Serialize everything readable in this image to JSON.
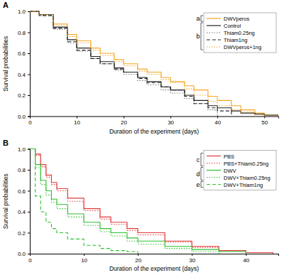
{
  "chart_data": [
    {
      "type": "line",
      "title": "A",
      "x_label": "Duration of the experiment (days)",
      "y_label": "Survival probabilities",
      "x": [
        0,
        2,
        5,
        8,
        10,
        13,
        15,
        18,
        20,
        23,
        25,
        28,
        30,
        33,
        35,
        38,
        40,
        43,
        45,
        48,
        50,
        53
      ],
      "xlim": [
        0,
        53
      ],
      "xticks": [
        0,
        10,
        20,
        30,
        40,
        50
      ],
      "ylim": [
        0,
        1
      ],
      "yticks": [
        {
          "value": 0,
          "label": "0.0"
        },
        0.2,
        0.4,
        0.6,
        0.8,
        {
          "value": 1,
          "label": "1.0"
        }
      ],
      "legend": "top-right",
      "series": [
        {
          "name": "DWVperos",
          "color": "#f5a623",
          "line_style": "solid",
          "values": [
            1,
            0.97,
            0.88,
            0.78,
            0.72,
            0.65,
            0.6,
            0.54,
            0.5,
            0.45,
            0.42,
            0.37,
            0.33,
            0.29,
            0.25,
            0.19,
            0.15,
            0.1,
            0.06,
            0.03,
            0.01,
            0
          ]
        },
        {
          "name": "Control",
          "color": "#222222",
          "line_style": "solid",
          "values": [
            1,
            0.97,
            0.85,
            0.73,
            0.65,
            0.57,
            0.52,
            0.46,
            0.42,
            0.37,
            0.33,
            0.28,
            0.25,
            0.2,
            0.15,
            0.1,
            0.08,
            0.05,
            0.03,
            0.02,
            0.01,
            0
          ]
        },
        {
          "name": "Thiam0.25ng",
          "color": "#777777",
          "line_style": "dotted",
          "values": [
            1,
            0.96,
            0.83,
            0.7,
            0.62,
            0.55,
            0.5,
            0.44,
            0.4,
            0.34,
            0.3,
            0.25,
            0.22,
            0.17,
            0.12,
            0.06,
            0,
            null,
            null,
            null,
            null,
            null
          ]
        },
        {
          "name": "Thiam1ng",
          "color": "#222222",
          "line_style": "dashed",
          "values": [
            1,
            0.96,
            0.84,
            0.71,
            0.63,
            0.55,
            0.5,
            0.45,
            0.42,
            0.36,
            0.32,
            0.28,
            0.25,
            0.19,
            0.12,
            0.08,
            0.05,
            0,
            null,
            null,
            null,
            null
          ]
        },
        {
          "name": "DWVperos+1ng",
          "color": "#f5a623",
          "line_style": "dotted",
          "values": [
            1,
            0.97,
            0.87,
            0.76,
            0.7,
            0.63,
            0.58,
            0.52,
            0.48,
            0.43,
            0.4,
            0.35,
            0.32,
            0.26,
            0.2,
            0.14,
            0.1,
            0.06,
            0.04,
            0.01,
            0,
            null
          ]
        }
      ],
      "annotations": [
        {
          "text": "a",
          "series": [
            "DWVperos"
          ]
        },
        {
          "text": "b",
          "series": [
            "Control",
            "Thiam0.25ng",
            "Thiam1ng",
            "DWVperos+1ng"
          ]
        }
      ]
    },
    {
      "type": "line",
      "title": "B",
      "x_label": "Duration of the experiment (days)",
      "y_label": "Survival probabilities",
      "x": [
        0,
        1,
        2,
        3,
        4,
        5,
        7,
        10,
        13,
        15,
        18,
        20,
        25,
        30,
        35,
        40,
        45
      ],
      "xlim": [
        0,
        46
      ],
      "xticks": [
        0,
        10,
        20,
        30,
        40
      ],
      "ylim": [
        0,
        1
      ],
      "yticks": [
        {
          "value": 0,
          "label": "0.0"
        },
        0.2,
        0.4,
        0.6,
        0.8,
        {
          "value": 1,
          "label": "1.0"
        }
      ],
      "legend": "top-right",
      "series": [
        {
          "name": "PBS",
          "color": "#e03a3a",
          "line_style": "solid",
          "values": [
            1,
            0.95,
            0.85,
            0.75,
            0.68,
            0.62,
            0.53,
            0.43,
            0.35,
            0.3,
            0.24,
            0.2,
            0.12,
            0.07,
            0.03,
            0.01,
            0
          ]
        },
        {
          "name": "PBS+Thiam0.25ng",
          "color": "#e03a3a",
          "line_style": "dotted",
          "values": [
            1,
            0.94,
            0.83,
            0.73,
            0.66,
            0.6,
            0.5,
            0.41,
            0.33,
            0.28,
            0.22,
            0.18,
            0.11,
            0.06,
            0.03,
            0.01,
            0
          ]
        },
        {
          "name": "DWV",
          "color": "#2fbf2f",
          "line_style": "solid",
          "values": [
            1,
            0.85,
            0.7,
            0.6,
            0.52,
            0.47,
            0.38,
            0.3,
            0.24,
            0.2,
            0.15,
            0.12,
            0.07,
            0.04,
            0.02,
            0,
            null
          ]
        },
        {
          "name": "DWV+Thiam0.25ng",
          "color": "#2fbf2f",
          "line_style": "dotted",
          "values": [
            1,
            0.82,
            0.66,
            0.56,
            0.49,
            0.43,
            0.35,
            0.27,
            0.21,
            0.17,
            0.12,
            0.09,
            0.05,
            0.02,
            0,
            null,
            null
          ]
        },
        {
          "name": "DWV+Thiam1ng",
          "color": "#2fbf2f",
          "line_style": "dashed",
          "values": [
            1,
            0.55,
            0.4,
            0.3,
            0.24,
            0.2,
            0.14,
            0.08,
            0.05,
            0.03,
            0.02,
            0,
            null,
            null,
            null,
            null,
            null
          ]
        }
      ],
      "annotations": [
        {
          "text": "c",
          "series": [
            "PBS",
            "PBS+Thiam0.25ng"
          ]
        },
        {
          "text": "d",
          "series": [
            "DWV",
            "DWV+Thiam0.25ng"
          ]
        },
        {
          "text": "e",
          "series": [
            "DWV+Thiam1ng"
          ]
        }
      ]
    }
  ]
}
